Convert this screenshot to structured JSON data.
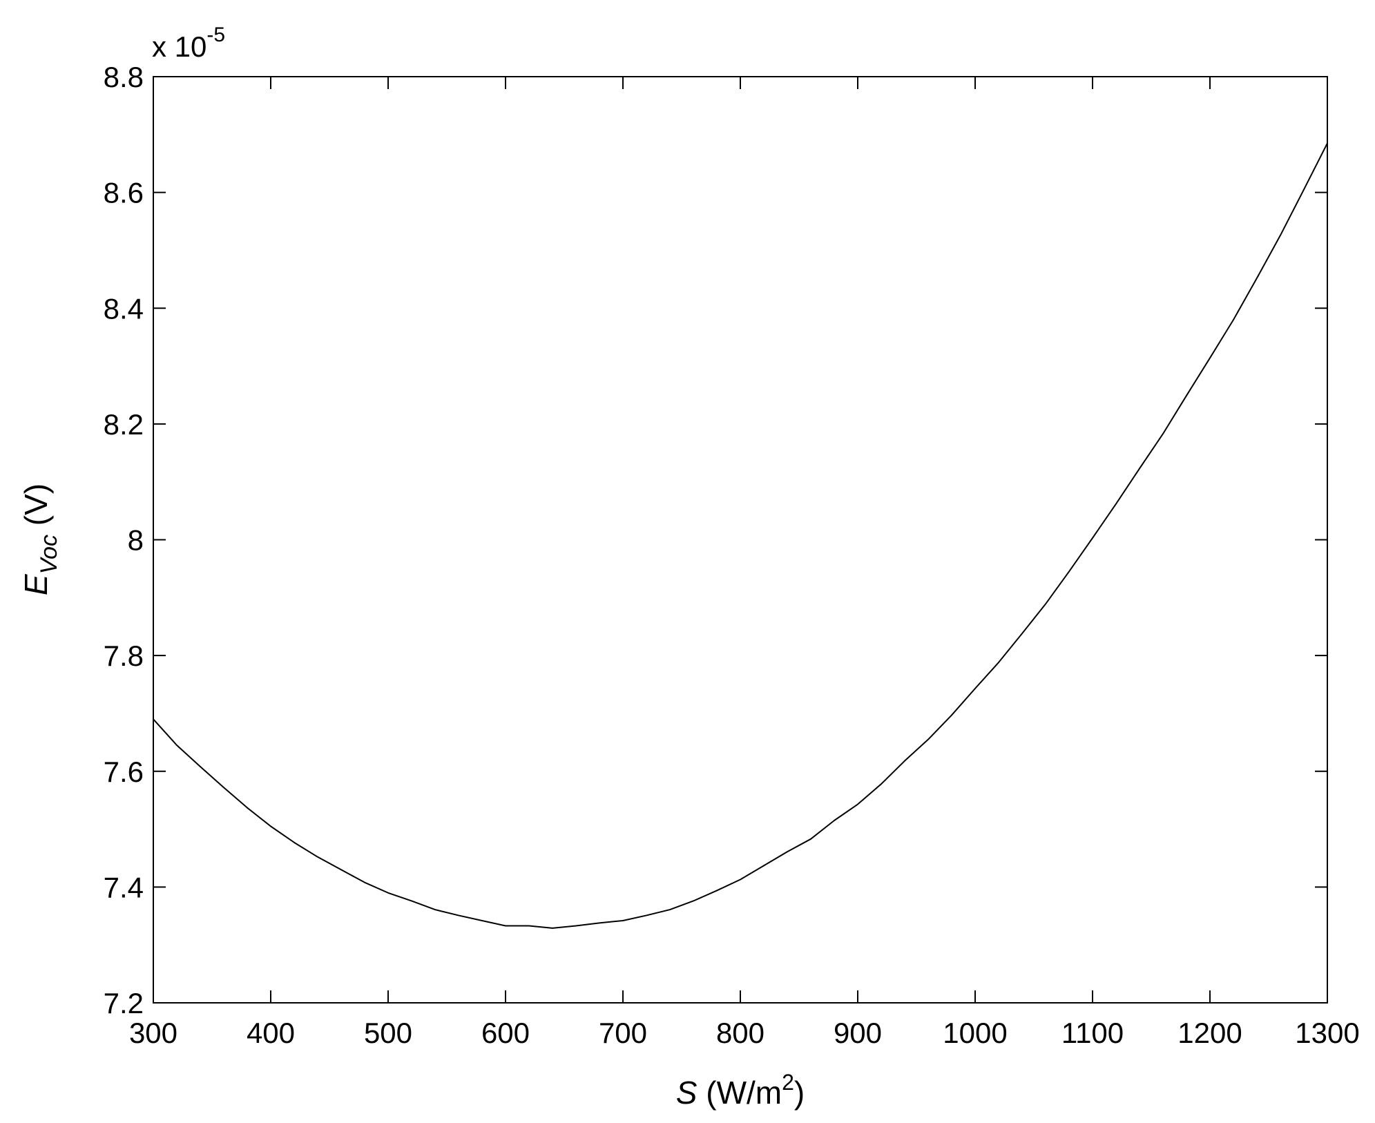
{
  "chart_data": {
    "type": "line",
    "title": "",
    "xlabel": {
      "symbol": "S",
      "unit_prefix": " (W/m",
      "unit_power": "2",
      "unit_suffix": ")"
    },
    "ylabel": {
      "symbol": "E",
      "subscript": "Voc",
      "unit": " (V)"
    },
    "y_multiplier": {
      "base": "x 10",
      "exponent": "-5"
    },
    "xlim": [
      300,
      1300
    ],
    "ylim": [
      7.2,
      8.8
    ],
    "x_ticks": [
      300,
      400,
      500,
      600,
      700,
      800,
      900,
      1000,
      1100,
      1200,
      1300
    ],
    "y_ticks": [
      7.2,
      7.4,
      7.6,
      7.8,
      8,
      8.2,
      8.4,
      8.6,
      8.8
    ],
    "y_tick_labels": [
      "7.2",
      "7.4",
      "7.6",
      "7.8",
      "8",
      "8.2",
      "8.4",
      "8.6",
      "8.8"
    ],
    "grid": false,
    "series": [
      {
        "color": "#000000",
        "x": [
          300,
          320,
          340,
          360,
          380,
          400,
          420,
          440,
          460,
          480,
          500,
          520,
          540,
          560,
          580,
          600,
          620,
          640,
          660,
          680,
          700,
          720,
          740,
          760,
          780,
          800,
          820,
          840,
          860,
          880,
          900,
          920,
          940,
          960,
          980,
          1000,
          1020,
          1040,
          1060,
          1080,
          1100,
          1120,
          1140,
          1160,
          1180,
          1200,
          1220,
          1240,
          1260,
          1280,
          1300
        ],
        "y": [
          7.69,
          7.645,
          7.608,
          7.572,
          7.537,
          7.505,
          7.477,
          7.452,
          7.43,
          7.408,
          7.39,
          7.376,
          7.361,
          7.351,
          7.342,
          7.333,
          7.333,
          7.329,
          7.333,
          7.338,
          7.342,
          7.351,
          7.361,
          7.376,
          7.394,
          7.413,
          7.437,
          7.461,
          7.483,
          7.515,
          7.543,
          7.578,
          7.618,
          7.655,
          7.697,
          7.743,
          7.788,
          7.838,
          7.889,
          7.945,
          8.003,
          8.062,
          8.123,
          8.183,
          8.249,
          8.314,
          8.38,
          8.452,
          8.526,
          8.605,
          8.685
        ]
      }
    ]
  }
}
